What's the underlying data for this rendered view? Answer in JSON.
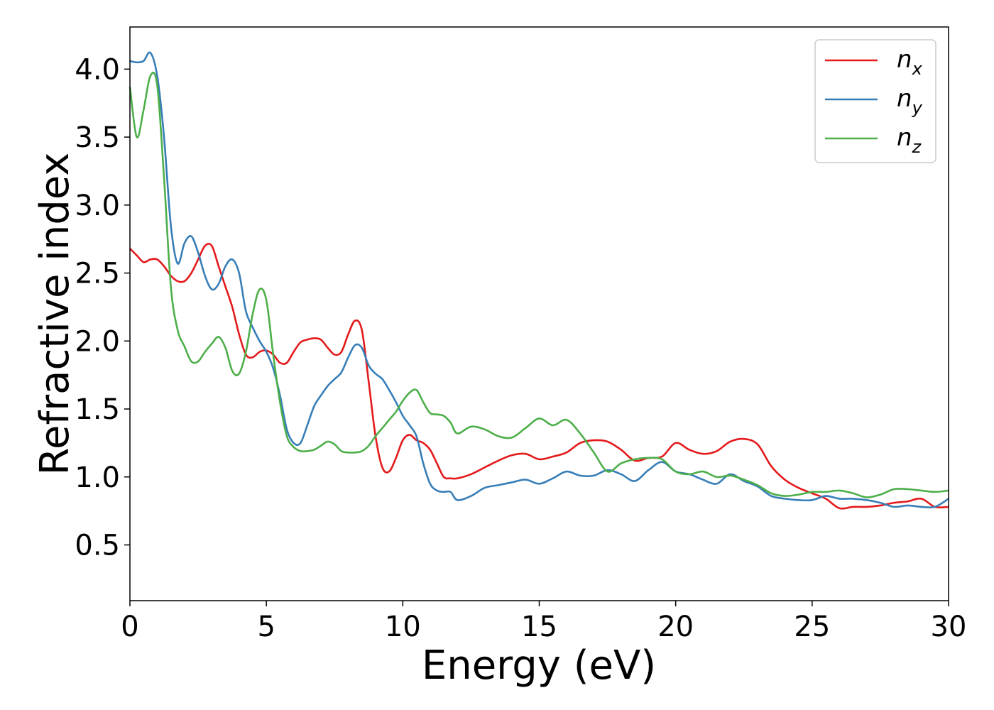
{
  "chart_data": {
    "type": "line",
    "xlabel": "Energy (eV)",
    "ylabel": "Refractive index",
    "xlim": [
      0,
      30
    ],
    "ylim": [
      0.09,
      4.31
    ],
    "xticks": [
      "0",
      "5",
      "10",
      "15",
      "20",
      "25",
      "30"
    ],
    "yticks": [
      "0.5",
      "1.0",
      "1.5",
      "2.0",
      "2.5",
      "3.0",
      "3.5",
      "4.0"
    ],
    "grid": false,
    "legend_position": "top-right",
    "series": [
      {
        "name": "n_x",
        "label_main": "n",
        "label_sub": "x",
        "color": "#e41a1c",
        "x": [
          0,
          0.25,
          0.5,
          0.75,
          1.0,
          1.25,
          1.5,
          1.75,
          2.0,
          2.25,
          2.5,
          2.75,
          3.0,
          3.25,
          3.5,
          3.75,
          4.0,
          4.25,
          4.5,
          4.75,
          5.0,
          5.25,
          5.5,
          5.75,
          6.0,
          6.25,
          6.5,
          6.75,
          7.0,
          7.25,
          7.5,
          7.75,
          8.0,
          8.25,
          8.5,
          8.75,
          9.0,
          9.25,
          9.5,
          9.75,
          10.0,
          10.25,
          10.5,
          10.75,
          11.0,
          11.25,
          11.5,
          11.75,
          12.0,
          12.5,
          13.0,
          13.5,
          14.0,
          14.5,
          15.0,
          15.5,
          16.0,
          16.5,
          17.0,
          17.5,
          18.0,
          18.5,
          19.0,
          19.5,
          20.0,
          20.5,
          21.0,
          21.5,
          22.0,
          22.5,
          23.0,
          23.5,
          24.0,
          24.5,
          25.0,
          25.5,
          26.0,
          26.5,
          27.0,
          27.5,
          28.0,
          28.5,
          29.0,
          29.5,
          30.0
        ],
        "y": [
          2.68,
          2.63,
          2.58,
          2.6,
          2.6,
          2.55,
          2.48,
          2.44,
          2.44,
          2.5,
          2.6,
          2.7,
          2.7,
          2.55,
          2.4,
          2.25,
          2.05,
          1.9,
          1.88,
          1.92,
          1.93,
          1.9,
          1.84,
          1.84,
          1.92,
          1.99,
          2.01,
          2.02,
          2.01,
          1.95,
          1.9,
          1.92,
          2.05,
          2.15,
          2.08,
          1.7,
          1.3,
          1.07,
          1.04,
          1.14,
          1.27,
          1.31,
          1.27,
          1.25,
          1.2,
          1.1,
          1.0,
          0.99,
          0.99,
          1.02,
          1.07,
          1.12,
          1.16,
          1.17,
          1.13,
          1.15,
          1.18,
          1.25,
          1.27,
          1.26,
          1.2,
          1.12,
          1.14,
          1.15,
          1.25,
          1.2,
          1.17,
          1.19,
          1.26,
          1.28,
          1.24,
          1.08,
          0.98,
          0.92,
          0.88,
          0.84,
          0.77,
          0.78,
          0.78,
          0.79,
          0.81,
          0.82,
          0.84,
          0.78,
          0.78
        ]
      },
      {
        "name": "n_y",
        "label_main": "n",
        "label_sub": "y",
        "color": "#377eb8",
        "x": [
          0,
          0.25,
          0.5,
          0.75,
          1.0,
          1.25,
          1.5,
          1.75,
          2.0,
          2.25,
          2.5,
          2.75,
          3.0,
          3.25,
          3.5,
          3.75,
          4.0,
          4.25,
          4.5,
          4.75,
          5.0,
          5.25,
          5.5,
          5.75,
          6.0,
          6.25,
          6.5,
          6.75,
          7.0,
          7.25,
          7.5,
          7.75,
          8.0,
          8.25,
          8.5,
          8.75,
          9.0,
          9.25,
          9.5,
          9.75,
          10.0,
          10.25,
          10.5,
          10.75,
          11.0,
          11.25,
          11.5,
          11.75,
          12.0,
          12.5,
          13.0,
          13.5,
          14.0,
          14.5,
          15.0,
          15.5,
          16.0,
          16.5,
          17.0,
          17.5,
          18.0,
          18.5,
          19.0,
          19.5,
          20.0,
          20.5,
          21.0,
          21.5,
          22.0,
          22.5,
          23.0,
          23.5,
          24.0,
          24.5,
          25.0,
          25.5,
          26.0,
          26.5,
          27.0,
          27.5,
          28.0,
          28.5,
          29.0,
          29.5,
          30.0
        ],
        "y": [
          4.06,
          4.05,
          4.06,
          4.12,
          3.95,
          3.5,
          2.85,
          2.57,
          2.72,
          2.77,
          2.65,
          2.48,
          2.38,
          2.42,
          2.55,
          2.6,
          2.5,
          2.22,
          2.1,
          2.0,
          1.92,
          1.8,
          1.6,
          1.35,
          1.25,
          1.25,
          1.38,
          1.52,
          1.6,
          1.67,
          1.72,
          1.77,
          1.88,
          1.97,
          1.95,
          1.82,
          1.76,
          1.72,
          1.64,
          1.55,
          1.45,
          1.38,
          1.3,
          1.1,
          0.95,
          0.9,
          0.89,
          0.89,
          0.83,
          0.86,
          0.92,
          0.94,
          0.96,
          0.98,
          0.95,
          0.99,
          1.04,
          1.01,
          1.01,
          1.05,
          1.02,
          0.97,
          1.05,
          1.11,
          1.04,
          1.02,
          0.98,
          0.95,
          1.02,
          0.97,
          0.93,
          0.86,
          0.84,
          0.83,
          0.83,
          0.86,
          0.84,
          0.84,
          0.83,
          0.81,
          0.78,
          0.79,
          0.78,
          0.78,
          0.84
        ]
      },
      {
        "name": "n_z",
        "label_main": "n",
        "label_sub": "z",
        "color": "#4daf4a",
        "x": [
          0,
          0.25,
          0.5,
          0.75,
          1.0,
          1.25,
          1.5,
          1.75,
          2.0,
          2.25,
          2.5,
          2.75,
          3.0,
          3.25,
          3.5,
          3.75,
          4.0,
          4.25,
          4.5,
          4.75,
          5.0,
          5.25,
          5.5,
          5.75,
          6.0,
          6.25,
          6.5,
          6.75,
          7.0,
          7.25,
          7.5,
          7.75,
          8.0,
          8.25,
          8.5,
          8.75,
          9.0,
          9.25,
          9.5,
          9.75,
          10.0,
          10.25,
          10.5,
          10.75,
          11.0,
          11.25,
          11.5,
          11.75,
          12.0,
          12.5,
          13.0,
          13.5,
          14.0,
          14.5,
          15.0,
          15.5,
          16.0,
          16.5,
          17.0,
          17.5,
          18.0,
          18.5,
          19.0,
          19.5,
          20.0,
          20.5,
          21.0,
          21.5,
          22.0,
          22.5,
          23.0,
          23.5,
          24.0,
          24.5,
          25.0,
          25.5,
          26.0,
          26.5,
          27.0,
          27.5,
          28.0,
          28.5,
          29.0,
          29.5,
          30.0
        ],
        "y": [
          3.87,
          3.5,
          3.7,
          3.95,
          3.88,
          3.2,
          2.4,
          2.08,
          1.96,
          1.85,
          1.85,
          1.92,
          1.98,
          2.03,
          1.95,
          1.78,
          1.76,
          1.92,
          2.2,
          2.38,
          2.3,
          1.9,
          1.55,
          1.3,
          1.22,
          1.19,
          1.19,
          1.2,
          1.23,
          1.26,
          1.24,
          1.19,
          1.18,
          1.18,
          1.19,
          1.23,
          1.3,
          1.36,
          1.42,
          1.48,
          1.56,
          1.62,
          1.64,
          1.55,
          1.47,
          1.46,
          1.45,
          1.4,
          1.32,
          1.37,
          1.35,
          1.3,
          1.29,
          1.36,
          1.43,
          1.38,
          1.42,
          1.32,
          1.18,
          1.04,
          1.1,
          1.13,
          1.14,
          1.13,
          1.04,
          1.02,
          1.04,
          1.0,
          1.01,
          0.98,
          0.94,
          0.88,
          0.86,
          0.87,
          0.89,
          0.89,
          0.9,
          0.88,
          0.85,
          0.87,
          0.91,
          0.91,
          0.9,
          0.89,
          0.9
        ]
      }
    ]
  }
}
